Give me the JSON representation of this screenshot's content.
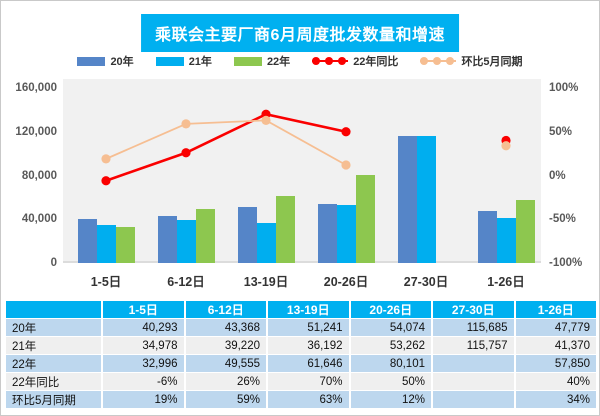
{
  "title": "乘联会主要厂商6月周度批发数量和增速",
  "colors": {
    "accent_cyan": "#00B0F0",
    "bar_2020": "#5585C8",
    "bar_2021": "#00AEEF",
    "bar_2022": "#8DC74F",
    "line_yoy": "#FA0000",
    "line_mom": "#F6BE92",
    "plot_bg": "#F1F1F1",
    "row_blue": "#BDD7EE",
    "row_gray": "#EFEFEF"
  },
  "legend": {
    "items": [
      {
        "label": "20年",
        "marker": "bar",
        "color_key": "bar_2020"
      },
      {
        "label": "21年",
        "marker": "bar",
        "color_key": "bar_2021"
      },
      {
        "label": "22年",
        "marker": "bar",
        "color_key": "bar_2022"
      },
      {
        "label": "22年同比",
        "marker": "line",
        "color_key": "line_yoy"
      },
      {
        "label": "环比5月同期",
        "marker": "line",
        "color_key": "line_mom"
      }
    ]
  },
  "chart_data": {
    "type": "bar+line combo",
    "title": "乘联会主要厂商6月周度批发数量和增速",
    "categories": [
      "1-5日",
      "6-12日",
      "13-19日",
      "20-26日",
      "27-30日",
      "1-26日"
    ],
    "series": [
      {
        "name": "20年",
        "type": "bar",
        "axis": "left",
        "color_key": "bar_2020",
        "values": [
          40293,
          43368,
          51241,
          54074,
          115685,
          47779
        ]
      },
      {
        "name": "21年",
        "type": "bar",
        "axis": "left",
        "color_key": "bar_2021",
        "values": [
          34978,
          39220,
          36192,
          53262,
          115757,
          41370
        ]
      },
      {
        "name": "22年",
        "type": "bar",
        "axis": "left",
        "color_key": "bar_2022",
        "values": [
          32996,
          49555,
          61646,
          80101,
          null,
          57850
        ]
      },
      {
        "name": "22年同比",
        "type": "line",
        "axis": "right",
        "color_key": "line_yoy",
        "values": [
          -6,
          26,
          70,
          50,
          null,
          40
        ],
        "unit": "%"
      },
      {
        "name": "环比5月同期",
        "type": "line",
        "axis": "right",
        "color_key": "line_mom",
        "values": [
          19,
          59,
          63,
          12,
          null,
          34
        ],
        "unit": "%"
      }
    ],
    "left_axis": {
      "min": 0,
      "max": 160000,
      "ticks": [
        "0",
        "40,000",
        "80,000",
        "120,000",
        "160,000"
      ]
    },
    "right_axis": {
      "min": -100,
      "max": 100,
      "ticks": [
        "-100%",
        "-50%",
        "0%",
        "50%",
        "100%"
      ]
    },
    "grid": false,
    "legend_position": "top"
  },
  "table": {
    "header": [
      "",
      "1-5日",
      "6-12日",
      "13-19日",
      "20-26日",
      "27-30日",
      "1-26日"
    ],
    "rows": [
      {
        "label": "20年",
        "values": [
          "40,293",
          "43,368",
          "51,241",
          "54,074",
          "115,685",
          "47,779"
        ]
      },
      {
        "label": "21年",
        "values": [
          "34,978",
          "39,220",
          "36,192",
          "53,262",
          "115,757",
          "41,370"
        ]
      },
      {
        "label": "22年",
        "values": [
          "32,996",
          "49,555",
          "61,646",
          "80,101",
          "",
          "57,850"
        ]
      },
      {
        "label": "22年同比",
        "values": [
          "-6%",
          "26%",
          "70%",
          "50%",
          "",
          "40%"
        ]
      },
      {
        "label": "环比5月同期",
        "values": [
          "19%",
          "59%",
          "63%",
          "12%",
          "",
          "34%"
        ]
      }
    ]
  }
}
